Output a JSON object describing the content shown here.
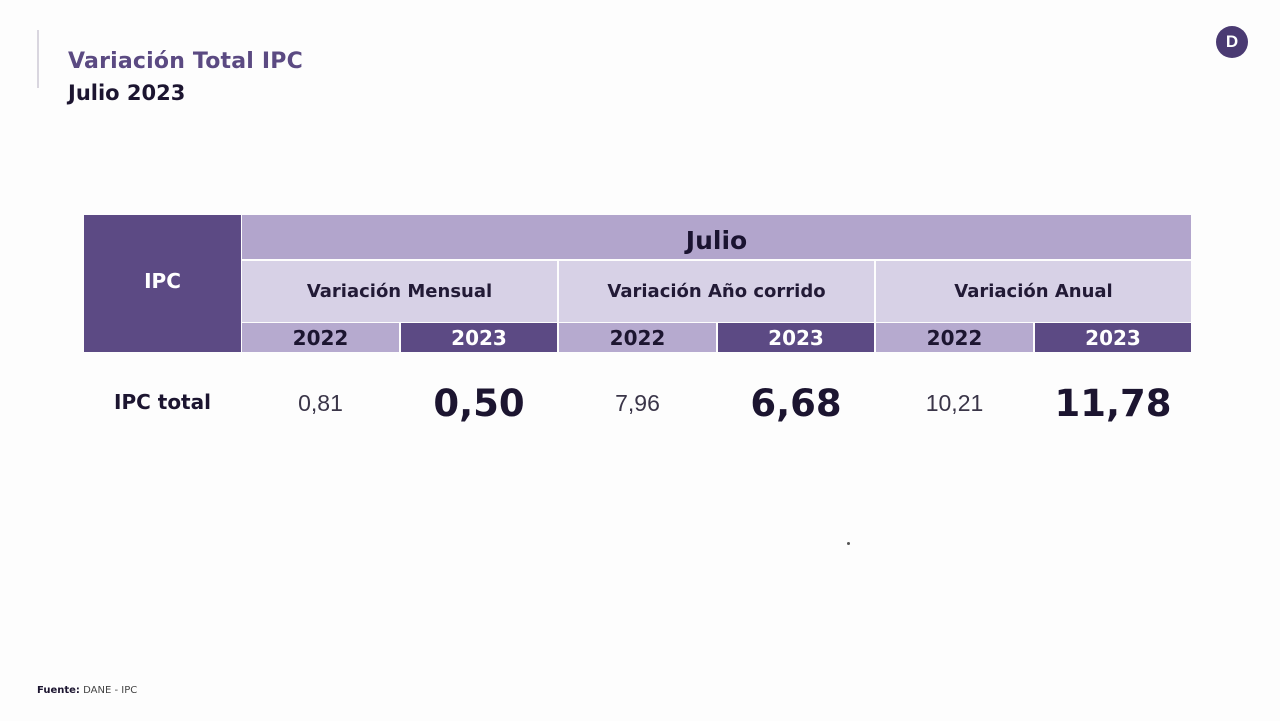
{
  "header": {
    "title": "Variación Total IPC",
    "subtitle": "Julio 2023",
    "logo_letter": "D"
  },
  "table": {
    "corner_label": "IPC",
    "month_label": "Julio",
    "groups": [
      {
        "label": "Variación Mensual",
        "years": [
          "2022",
          "2023"
        ]
      },
      {
        "label": "Variación Año corrido",
        "years": [
          "2022",
          "2023"
        ]
      },
      {
        "label": "Variación Anual",
        "years": [
          "2022",
          "2023"
        ]
      }
    ],
    "rows": [
      {
        "label": "IPC total",
        "values": [
          "0,81",
          "0,50",
          "7,96",
          "6,68",
          "10,21",
          "11,78"
        ]
      }
    ]
  },
  "footer": {
    "source_label": "Fuente:",
    "source_text": "DANE - IPC"
  },
  "colors": {
    "accent_dark": "#5c4a84",
    "accent_mid": "#b2a5cc",
    "accent_light": "#d7d1e6",
    "title_purple": "#5b4a82"
  }
}
